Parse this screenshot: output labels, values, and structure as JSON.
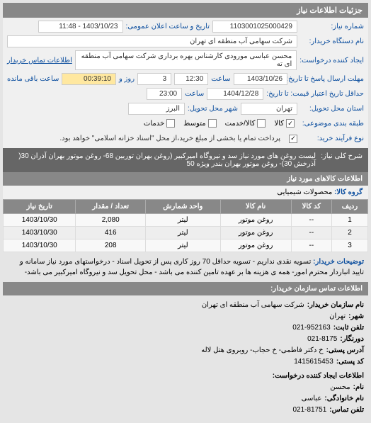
{
  "header": {
    "title": "جزئیات اطلاعات نیاز"
  },
  "fields": {
    "need_number_label": "شماره نیاز:",
    "need_number": "1103001025000429",
    "announce_label": "تاریخ و ساعت اعلان عمومی:",
    "announce_value": "1403/10/23 - 11:48",
    "buyer_device_label": "نام دستگاه خریدار:",
    "buyer_device": "شرکت سهامی آب منطقه ای تهران",
    "creator_label": "ایجاد کننده درخواست:",
    "creator": "محسن عباسی مورودی کارشناس بهره برداری شرکت سهامی آب منطقه ای ته",
    "contact_link": "اطلاعات تماس خریدار",
    "send_deadline_label": "مهلت ارسال پاسخ تا تاریخ:",
    "send_deadline_date": "1403/10/26",
    "time_label": "ساعت",
    "send_deadline_time": "12:30",
    "days_label": "روز و",
    "days_value": "3",
    "remaining_time": "00:39:10",
    "remaining_label": "ساعت باقی مانده",
    "validity_label": "حداقل تاریخ اعتبار قیمت: تا تاریخ:",
    "validity_date": "1404/12/28",
    "validity_time": "23:00",
    "delivery_province_label": "استان محل تحویل:",
    "delivery_province": "تهران",
    "delivery_city_label": "شهر محل تحویل:",
    "delivery_city": "البرز",
    "piece_type_label": "طبقه بندی موضوعی:",
    "checkbox_kala": "کالا",
    "checkbox_kala_khadamat": "کالا/خدمت",
    "checkbox_motevasset": "متوسط",
    "checkbox_khadamat": "خدمات",
    "kharid_type_label": "نوع فرآیند خرید:",
    "kharid_note": "پرداخت تمام یا بخشی از مبلغ خرید،از محل \"اسناد خزانه اسلامی\" خواهد بود."
  },
  "description": {
    "title_label": "شرح کلی نیاز:",
    "title_text": "لیست روغن های مورد نیاز سد و نیروگاه امیرکبیر (روغن بهران توربین 68- روغن موتور بهران آذران 30( آذرخش 30)- روغن موتور بهران بندر ویژه 50"
  },
  "items": {
    "header": "اطلاعات کالاهای مورد نیاز",
    "group_label": "گروه کالا:",
    "group_value": "محصولات شیمیایی",
    "columns": {
      "row": "ردیف",
      "code": "کد کالا",
      "name": "نام کالا",
      "unit": "واحد شمارش",
      "qty": "تعداد / مقدار",
      "date": "تاریخ نیاز"
    },
    "rows": [
      {
        "row": "1",
        "code": "--",
        "name": "روغن موتور",
        "unit": "لیتر",
        "qty": "2,080",
        "date": "1403/10/30"
      },
      {
        "row": "2",
        "code": "--",
        "name": "روغن موتور",
        "unit": "لیتر",
        "qty": "416",
        "date": "1403/10/30"
      },
      {
        "row": "3",
        "code": "--",
        "name": "روغن موتور",
        "unit": "لیتر",
        "qty": "208",
        "date": "1403/10/30"
      }
    ]
  },
  "buyer_notes": {
    "label": "توضیحات خریدار:",
    "text": "تسویه نقدی نداریم - تسویه حداقل 70 روز کاری پس از تحویل اسناد - درخواستهای مورد نیاز سامانه و تایید انبار‌دار محترم امور- همه ی هزینه ها بر عهده تامین کننده می باشد - محل تحویل سد و نیروگاه امیرکبیر می باشد-"
  },
  "contact": {
    "header": "اطلاعات تماس سازمان خریدار:",
    "org_label": "نام سازمان خریدار:",
    "org": "شرکت سهامی آب منطقه ای تهران",
    "city_label": "شهر:",
    "city": "تهران",
    "tel_label": "تلفن ثابت:",
    "tel": "021-952163",
    "fax_label": "دورنگار:",
    "fax": "021-8175",
    "address_label": "آدرس پستی:",
    "address": "خ دکتر فاطمی- خ حجاب- روبروی هتل لاله",
    "postcode_label": "کد پستی:",
    "postcode": "1415615453",
    "creator_header": "اطلاعات ایجاد کننده درخواست:",
    "name_label": "نام:",
    "name": "محسن",
    "family_label": "نام خانوادگی:",
    "family": "عباسی",
    "phone_label": "تلفن تماس:",
    "phone": "021-81751"
  }
}
